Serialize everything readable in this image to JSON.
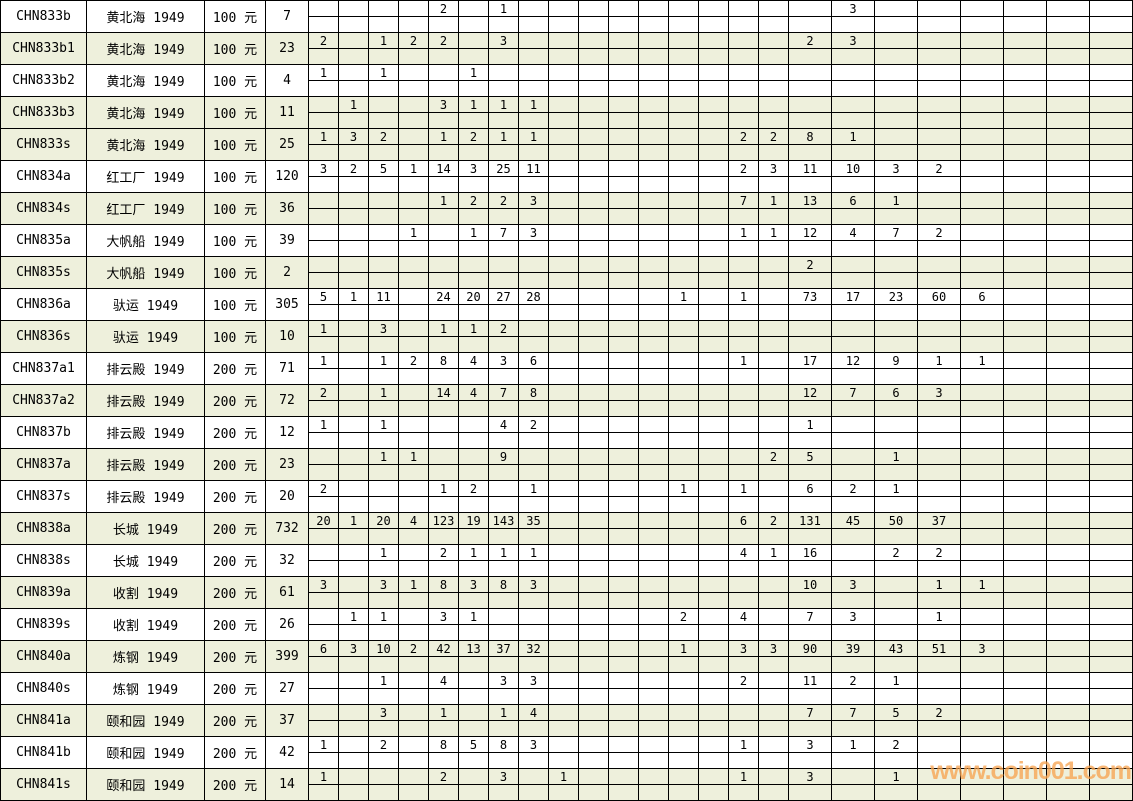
{
  "watermark": {
    "text": "www.coin001.com",
    "color": "#f7a452"
  },
  "table": {
    "narrow_columns": 16,
    "wide_columns": 8,
    "row_background_shaded": "#eef0dc",
    "rows": [
      {
        "code": "CHN833b",
        "name": "黄北海 1949",
        "denom": "100 元",
        "count": "7",
        "shaded": false,
        "cells": {
          "5": "2",
          "7": "1",
          "18": "3"
        }
      },
      {
        "code": "CHN833b1",
        "name": "黄北海 1949",
        "denom": "100 元",
        "count": "23",
        "shaded": true,
        "cells": {
          "1": "2",
          "3": "1",
          "4": "2",
          "5": "2",
          "7": "3",
          "17": "2",
          "18": "3"
        }
      },
      {
        "code": "CHN833b2",
        "name": "黄北海 1949",
        "denom": "100 元",
        "count": "4",
        "shaded": false,
        "cells": {
          "1": "1",
          "3": "1",
          "6": "1"
        }
      },
      {
        "code": "CHN833b3",
        "name": "黄北海 1949",
        "denom": "100 元",
        "count": "11",
        "shaded": true,
        "cells": {
          "2": "1",
          "5": "3",
          "6": "1",
          "7": "1",
          "8": "1"
        }
      },
      {
        "code": "CHN833s",
        "name": "黄北海 1949",
        "denom": "100 元",
        "count": "25",
        "shaded": true,
        "cells": {
          "1": "1",
          "2": "3",
          "3": "2",
          "5": "1",
          "6": "2",
          "7": "1",
          "8": "1",
          "15": "2",
          "16": "2",
          "17": "8",
          "18": "1"
        }
      },
      {
        "code": "CHN834a",
        "name": "红工厂 1949",
        "denom": "100 元",
        "count": "120",
        "shaded": false,
        "cells": {
          "1": "3",
          "2": "2",
          "3": "5",
          "4": "1",
          "5": "14",
          "6": "3",
          "7": "25",
          "8": "11",
          "15": "2",
          "16": "3",
          "17": "11",
          "18": "10",
          "19": "3",
          "20": "2"
        }
      },
      {
        "code": "CHN834s",
        "name": "红工厂 1949",
        "denom": "100 元",
        "count": "36",
        "shaded": true,
        "cells": {
          "5": "1",
          "6": "2",
          "7": "2",
          "8": "3",
          "15": "7",
          "16": "1",
          "17": "13",
          "18": "6",
          "19": "1"
        }
      },
      {
        "code": "CHN835a",
        "name": "大帆船 1949",
        "denom": "100 元",
        "count": "39",
        "shaded": false,
        "cells": {
          "4": "1",
          "6": "1",
          "7": "7",
          "8": "3",
          "15": "1",
          "16": "1",
          "17": "12",
          "18": "4",
          "19": "7",
          "20": "2"
        }
      },
      {
        "code": "CHN835s",
        "name": "大帆船 1949",
        "denom": "100 元",
        "count": "2",
        "shaded": true,
        "cells": {
          "17": "2"
        }
      },
      {
        "code": "CHN836a",
        "name": "驮运 1949",
        "denom": "100 元",
        "count": "305",
        "shaded": false,
        "cells": {
          "1": "5",
          "2": "1",
          "3": "11",
          "5": "24",
          "6": "20",
          "7": "27",
          "8": "28",
          "13": "1",
          "15": "1",
          "17": "73",
          "18": "17",
          "19": "23",
          "20": "60",
          "21": "6"
        }
      },
      {
        "code": "CHN836s",
        "name": "驮运 1949",
        "denom": "100 元",
        "count": "10",
        "shaded": true,
        "cells": {
          "1": "1",
          "3": "3",
          "5": "1",
          "6": "1",
          "7": "2"
        }
      },
      {
        "code": "CHN837a1",
        "name": "排云殿 1949",
        "denom": "200 元",
        "count": "71",
        "shaded": false,
        "cells": {
          "1": "1",
          "3": "1",
          "4": "2",
          "5": "8",
          "6": "4",
          "7": "3",
          "8": "6",
          "15": "1",
          "17": "17",
          "18": "12",
          "19": "9",
          "20": "1",
          "21": "1"
        }
      },
      {
        "code": "CHN837a2",
        "name": "排云殿 1949",
        "denom": "200 元",
        "count": "72",
        "shaded": true,
        "cells": {
          "1": "2",
          "3": "1",
          "5": "14",
          "6": "4",
          "7": "7",
          "8": "8",
          "17": "12",
          "18": "7",
          "19": "6",
          "20": "3"
        }
      },
      {
        "code": "CHN837b",
        "name": "排云殿 1949",
        "denom": "200 元",
        "count": "12",
        "shaded": false,
        "cells": {
          "1": "1",
          "3": "1",
          "7": "4",
          "8": "2",
          "17": "1"
        }
      },
      {
        "code": "CHN837a",
        "name": "排云殿 1949",
        "denom": "200 元",
        "count": "23",
        "shaded": true,
        "cells": {
          "3": "1",
          "4": "1",
          "7": "9",
          "16": "2",
          "17": "5",
          "19": "1"
        }
      },
      {
        "code": "CHN837s",
        "name": "排云殿 1949",
        "denom": "200 元",
        "count": "20",
        "shaded": false,
        "cells": {
          "1": "2",
          "5": "1",
          "6": "2",
          "8": "1",
          "13": "1",
          "15": "1",
          "17": "6",
          "18": "2",
          "19": "1"
        }
      },
      {
        "code": "CHN838a",
        "name": "长城 1949",
        "denom": "200 元",
        "count": "732",
        "shaded": true,
        "cells": {
          "1": "20",
          "2": "1",
          "3": "20",
          "4": "4",
          "5": "123",
          "6": "19",
          "7": "143",
          "8": "35",
          "15": "6",
          "16": "2",
          "17": "131",
          "18": "45",
          "19": "50",
          "20": "37"
        }
      },
      {
        "code": "CHN838s",
        "name": "长城 1949",
        "denom": "200 元",
        "count": "32",
        "shaded": false,
        "cells": {
          "3": "1",
          "5": "2",
          "6": "1",
          "7": "1",
          "8": "1",
          "15": "4",
          "16": "1",
          "17": "16",
          "19": "2",
          "20": "2"
        }
      },
      {
        "code": "CHN839a",
        "name": "收割 1949",
        "denom": "200 元",
        "count": "61",
        "shaded": true,
        "cells": {
          "1": "3",
          "3": "3",
          "4": "1",
          "5": "8",
          "6": "3",
          "7": "8",
          "8": "3",
          "17": "10",
          "18": "3",
          "20": "1",
          "21": "1"
        }
      },
      {
        "code": "CHN839s",
        "name": "收割 1949",
        "denom": "200 元",
        "count": "26",
        "shaded": false,
        "cells": {
          "2": "1",
          "3": "1",
          "5": "3",
          "6": "1",
          "13": "2",
          "15": "4",
          "17": "7",
          "18": "3",
          "20": "1"
        }
      },
      {
        "code": "CHN840a",
        "name": "炼钢 1949",
        "denom": "200 元",
        "count": "399",
        "shaded": true,
        "cells": {
          "1": "6",
          "2": "3",
          "3": "10",
          "4": "2",
          "5": "42",
          "6": "13",
          "7": "37",
          "8": "32",
          "13": "1",
          "15": "3",
          "16": "3",
          "17": "90",
          "18": "39",
          "19": "43",
          "20": "51",
          "21": "3"
        }
      },
      {
        "code": "CHN840s",
        "name": "炼钢 1949",
        "denom": "200 元",
        "count": "27",
        "shaded": false,
        "cells": {
          "3": "1",
          "5": "4",
          "7": "3",
          "8": "3",
          "15": "2",
          "17": "11",
          "18": "2",
          "19": "1"
        }
      },
      {
        "code": "CHN841a",
        "name": "颐和园 1949",
        "denom": "200 元",
        "count": "37",
        "shaded": true,
        "cells": {
          "3": "3",
          "5": "1",
          "7": "1",
          "8": "4",
          "17": "7",
          "18": "7",
          "19": "5",
          "20": "2"
        }
      },
      {
        "code": "CHN841b",
        "name": "颐和园 1949",
        "denom": "200 元",
        "count": "42",
        "shaded": false,
        "cells": {
          "1": "1",
          "3": "2",
          "5": "8",
          "6": "5",
          "7": "8",
          "8": "3",
          "15": "1",
          "17": "3",
          "18": "1",
          "19": "2"
        }
      },
      {
        "code": "CHN841s",
        "name": "颐和园 1949",
        "denom": "200 元",
        "count": "14",
        "shaded": true,
        "cells": {
          "1": "1",
          "5": "2",
          "7": "3",
          "9": "1",
          "15": "1",
          "17": "3",
          "19": "1"
        }
      }
    ]
  }
}
